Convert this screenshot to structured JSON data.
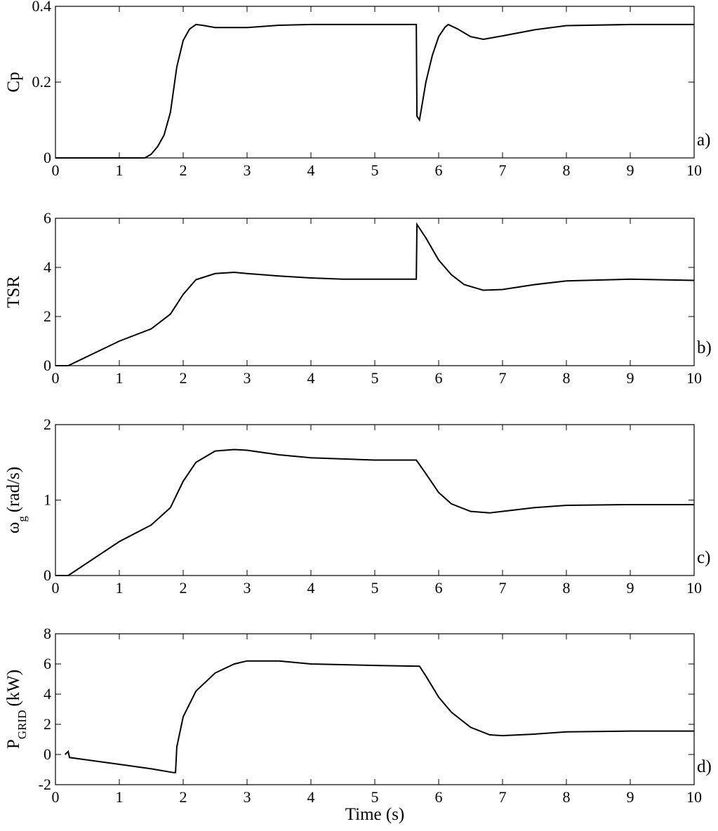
{
  "chart_data": [
    {
      "type": "line",
      "panel_label": "a)",
      "ylabel": {
        "text": "Cp"
      },
      "xlim": [
        0,
        10
      ],
      "xticks": [
        0,
        1,
        2,
        3,
        4,
        5,
        6,
        7,
        8,
        9,
        10
      ],
      "ylim": [
        0,
        0.4
      ],
      "yticks": [
        0,
        0.2,
        0.4
      ],
      "series": [
        {
          "color": "#000000",
          "x": [
            0,
            1.4,
            1.5,
            1.6,
            1.7,
            1.8,
            1.9,
            2.0,
            2.1,
            2.2,
            2.3,
            2.5,
            3,
            3.5,
            4,
            5,
            5.65,
            5.66,
            5.7,
            5.8,
            5.9,
            6.0,
            6.1,
            6.15,
            6.3,
            6.5,
            6.7,
            7,
            7.5,
            8,
            9,
            10
          ],
          "values": [
            0,
            0,
            0.01,
            0.03,
            0.06,
            0.12,
            0.24,
            0.31,
            0.34,
            0.352,
            0.35,
            0.344,
            0.344,
            0.35,
            0.352,
            0.352,
            0.352,
            0.11,
            0.1,
            0.2,
            0.27,
            0.32,
            0.345,
            0.352,
            0.34,
            0.32,
            0.313,
            0.322,
            0.338,
            0.349,
            0.352,
            0.352
          ]
        }
      ]
    },
    {
      "type": "line",
      "panel_label": "b)",
      "ylabel": {
        "text": "TSR"
      },
      "xlim": [
        0,
        10
      ],
      "xticks": [
        0,
        1,
        2,
        3,
        4,
        5,
        6,
        7,
        8,
        9,
        10
      ],
      "ylim": [
        0,
        6
      ],
      "yticks": [
        0,
        2,
        4,
        6
      ],
      "series": [
        {
          "color": "#000000",
          "x": [
            0,
            0.2,
            1,
            1.5,
            1.8,
            2.0,
            2.2,
            2.5,
            2.8,
            3,
            3.5,
            4,
            4.5,
            5.65,
            5.66,
            5.8,
            6,
            6.2,
            6.4,
            6.7,
            7,
            7.5,
            8,
            9,
            10
          ],
          "values": [
            0,
            0,
            1.0,
            1.5,
            2.1,
            2.9,
            3.5,
            3.75,
            3.8,
            3.75,
            3.65,
            3.57,
            3.52,
            3.52,
            5.75,
            5.2,
            4.3,
            3.7,
            3.3,
            3.07,
            3.1,
            3.3,
            3.45,
            3.52,
            3.47
          ]
        }
      ]
    },
    {
      "type": "line",
      "panel_label": "c)",
      "ylabel": {
        "text": "ω",
        "sub": "g",
        "unit": "(rad/s)"
      },
      "xlim": [
        0,
        10
      ],
      "xticks": [
        0,
        1,
        2,
        3,
        4,
        5,
        6,
        7,
        8,
        9,
        10
      ],
      "ylim": [
        0,
        2
      ],
      "yticks": [
        0,
        1,
        2
      ],
      "series": [
        {
          "color": "#000000",
          "x": [
            0,
            0.2,
            1,
            1.5,
            1.8,
            2,
            2.2,
            2.5,
            2.8,
            3,
            3.5,
            4,
            5,
            5.65,
            5.8,
            6,
            6.2,
            6.5,
            6.8,
            7,
            7.5,
            8,
            9,
            10
          ],
          "values": [
            0,
            0,
            0.45,
            0.67,
            0.9,
            1.25,
            1.5,
            1.65,
            1.67,
            1.66,
            1.6,
            1.56,
            1.53,
            1.53,
            1.35,
            1.1,
            0.95,
            0.85,
            0.83,
            0.85,
            0.9,
            0.93,
            0.94,
            0.94
          ]
        }
      ]
    },
    {
      "type": "line",
      "panel_label": "d)",
      "ylabel": {
        "text": "P",
        "sub": "GRID",
        "unit": "(kW)"
      },
      "xlabel": "Time (s)",
      "xlim": [
        0,
        10
      ],
      "xticks": [
        0,
        1,
        2,
        3,
        4,
        5,
        6,
        7,
        8,
        9,
        10
      ],
      "ylim": [
        -2,
        8
      ],
      "yticks": [
        -2,
        0,
        2,
        4,
        6,
        8
      ],
      "series": [
        {
          "color": "#000000",
          "x": [
            0.15,
            0.2,
            0.22,
            1,
            1.5,
            1.85,
            1.88,
            1.9,
            2,
            2.2,
            2.5,
            2.8,
            3,
            3.5,
            4,
            5,
            5.7,
            5.8,
            6,
            6.2,
            6.5,
            6.8,
            7,
            7.5,
            8,
            9,
            10
          ],
          "values": [
            0.0,
            0.2,
            -0.2,
            -0.65,
            -0.95,
            -1.2,
            -1.2,
            0.5,
            2.5,
            4.2,
            5.4,
            6.0,
            6.2,
            6.2,
            6.0,
            5.9,
            5.85,
            5.2,
            3.8,
            2.8,
            1.8,
            1.3,
            1.25,
            1.35,
            1.5,
            1.55,
            1.55
          ]
        }
      ]
    }
  ]
}
